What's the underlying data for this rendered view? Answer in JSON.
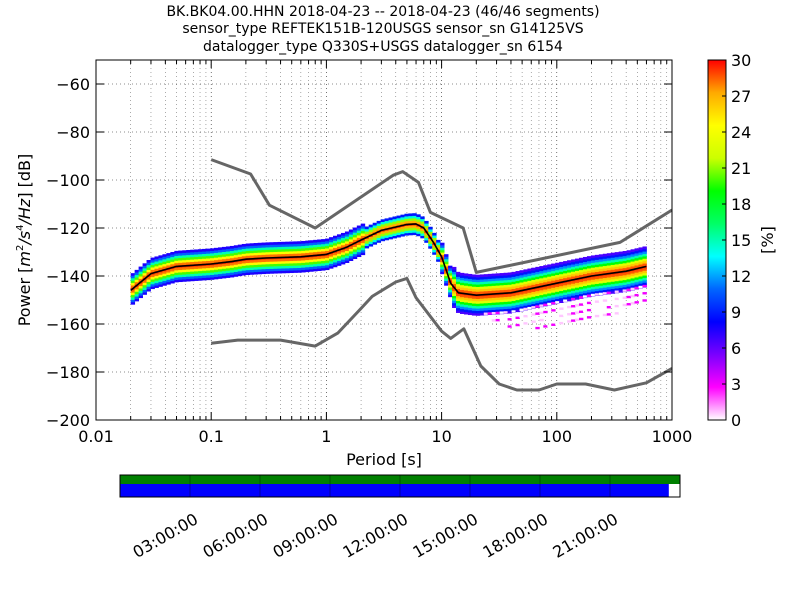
{
  "chart_data": {
    "type": "heatmap",
    "title_lines": [
      "BK.BK04.00.HHN   2018-04-23 -- 2018-04-23  (46/46 segments)",
      "sensor_type REFTEK151B-120USGS sensor_sn G14125VS",
      "datalogger_type Q330S+USGS datalogger_sn 6154"
    ],
    "xlabel": "Period [s]",
    "ylabel_prefix": "Power [",
    "ylabel_m": "m",
    "ylabel_s": "/s",
    "ylabel_hz": "/Hz",
    "ylabel_exp_m": "2",
    "ylabel_exp_s": "4",
    "ylabel_suffix": "] [dB]",
    "x_scale": "log",
    "xlim": [
      0.01,
      1000
    ],
    "ylim": [
      -200,
      -50
    ],
    "x_ticks": [
      {
        "value": 0.01,
        "label": "0.01"
      },
      {
        "value": 0.1,
        "label": "0.1"
      },
      {
        "value": 1,
        "label": "1"
      },
      {
        "value": 10,
        "label": "10"
      },
      {
        "value": 100,
        "label": "100"
      },
      {
        "value": 1000,
        "label": "1000"
      }
    ],
    "y_ticks": [
      {
        "value": -60,
        "label": "−60"
      },
      {
        "value": -80,
        "label": "−80"
      },
      {
        "value": -100,
        "label": "−100"
      },
      {
        "value": -120,
        "label": "−120"
      },
      {
        "value": -140,
        "label": "−140"
      },
      {
        "value": -160,
        "label": "−160"
      },
      {
        "value": -180,
        "label": "−180"
      },
      {
        "value": -200,
        "label": "−200"
      }
    ],
    "grid": true,
    "colorbar": {
      "label": "[%]",
      "range": [
        0,
        30
      ],
      "ticks": [
        {
          "value": 0,
          "label": "0"
        },
        {
          "value": 3,
          "label": "3"
        },
        {
          "value": 6,
          "label": "6"
        },
        {
          "value": 9,
          "label": "9"
        },
        {
          "value": 12,
          "label": "12"
        },
        {
          "value": 15,
          "label": "15"
        },
        {
          "value": 18,
          "label": "18"
        },
        {
          "value": 21,
          "label": "21"
        },
        {
          "value": 24,
          "label": "24"
        },
        {
          "value": 27,
          "label": "27"
        },
        {
          "value": 30,
          "label": "30"
        }
      ],
      "colors": [
        "#ffffff",
        "#ff00ff",
        "#7a00ff",
        "#0000ff",
        "#0066ff",
        "#00ffff",
        "#00ff66",
        "#00ff00",
        "#ccff00",
        "#ffff00",
        "#ffaa00",
        "#ff0000"
      ]
    },
    "series": [
      {
        "style": "noise-model",
        "color": "#666666",
        "points": [
          [
            0.1,
            -91.5
          ],
          [
            0.22,
            -97.5
          ],
          [
            0.32,
            -110.5
          ],
          [
            0.8,
            -120
          ],
          [
            3.8,
            -98
          ],
          [
            4.6,
            -96.5
          ],
          [
            6.3,
            -101
          ],
          [
            8,
            -113.5
          ],
          [
            15.4,
            -120
          ],
          [
            20,
            -138.5
          ],
          [
            354,
            -126
          ],
          [
            1000,
            -112.5
          ]
        ]
      },
      {
        "style": "noise-model",
        "color": "#666666",
        "points": [
          [
            0.1,
            -168
          ],
          [
            0.17,
            -166.7
          ],
          [
            0.4,
            -166.7
          ],
          [
            0.8,
            -169.2
          ],
          [
            1.26,
            -163.7
          ],
          [
            2,
            -153.5
          ],
          [
            2.5,
            -148.5
          ],
          [
            4,
            -142.5
          ],
          [
            5,
            -141
          ],
          [
            6,
            -149
          ],
          [
            10,
            -163
          ],
          [
            12,
            -166
          ],
          [
            15.6,
            -162
          ],
          [
            21.9,
            -177.5
          ],
          [
            31.6,
            -185
          ],
          [
            45,
            -187.5
          ],
          [
            70,
            -187.5
          ],
          [
            100,
            -185
          ],
          [
            178,
            -185
          ],
          [
            316,
            -187.5
          ],
          [
            600,
            -184.5
          ],
          [
            1000,
            -178.5
          ]
        ]
      },
      {
        "style": "mode",
        "color": "#000000",
        "points": [
          [
            0.02,
            -146
          ],
          [
            0.03,
            -139
          ],
          [
            0.05,
            -136
          ],
          [
            0.1,
            -135
          ],
          [
            0.15,
            -134
          ],
          [
            0.2,
            -133
          ],
          [
            0.3,
            -132.5
          ],
          [
            0.6,
            -132
          ],
          [
            1,
            -131
          ],
          [
            1.5,
            -128
          ],
          [
            2,
            -125
          ],
          [
            3,
            -121
          ],
          [
            5,
            -118.5
          ],
          [
            6,
            -118.3
          ],
          [
            7,
            -120
          ],
          [
            8.5,
            -126
          ],
          [
            10,
            -132
          ],
          [
            12,
            -143
          ],
          [
            14,
            -147
          ],
          [
            20,
            -148
          ],
          [
            40,
            -147
          ],
          [
            100,
            -143
          ],
          [
            200,
            -140
          ],
          [
            400,
            -138
          ],
          [
            600,
            -136
          ]
        ]
      }
    ],
    "density_bands": [
      {
        "label": "core",
        "points": [
          [
            0.02,
            -146
          ],
          [
            0.03,
            -139
          ],
          [
            0.05,
            -136
          ],
          [
            0.1,
            -135
          ],
          [
            0.15,
            -134
          ],
          [
            0.2,
            -133
          ],
          [
            0.3,
            -132.5
          ],
          [
            0.6,
            -132
          ],
          [
            1,
            -131
          ],
          [
            1.5,
            -128
          ],
          [
            2,
            -125
          ],
          [
            3,
            -121
          ],
          [
            5,
            -118.5
          ],
          [
            6,
            -118.3
          ],
          [
            7,
            -120
          ],
          [
            8.5,
            -126
          ],
          [
            10,
            -132
          ],
          [
            12,
            -143
          ],
          [
            14,
            -147
          ],
          [
            20,
            -148
          ],
          [
            40,
            -147
          ],
          [
            100,
            -143
          ],
          [
            200,
            -140
          ],
          [
            400,
            -138
          ],
          [
            600,
            -136
          ]
        ]
      },
      {
        "label": "tail",
        "points": [
          [
            22,
            -156
          ],
          [
            40,
            -162
          ],
          [
            80,
            -162
          ],
          [
            150,
            -160
          ],
          [
            300,
            -158
          ],
          [
            600,
            -150
          ]
        ]
      }
    ]
  },
  "timeline": {
    "colors": {
      "data": "#0000ff",
      "gaps": "#008000",
      "missing": "#ffffff"
    },
    "covered_fraction": 0.98,
    "ticks": [
      {
        "label": "03:00:00",
        "hour": 3
      },
      {
        "label": "06:00:00",
        "hour": 6
      },
      {
        "label": "09:00:00",
        "hour": 9
      },
      {
        "label": "12:00:00",
        "hour": 12
      },
      {
        "label": "15:00:00",
        "hour": 15
      },
      {
        "label": "18:00:00",
        "hour": 18
      },
      {
        "label": "21:00:00",
        "hour": 21
      }
    ]
  }
}
